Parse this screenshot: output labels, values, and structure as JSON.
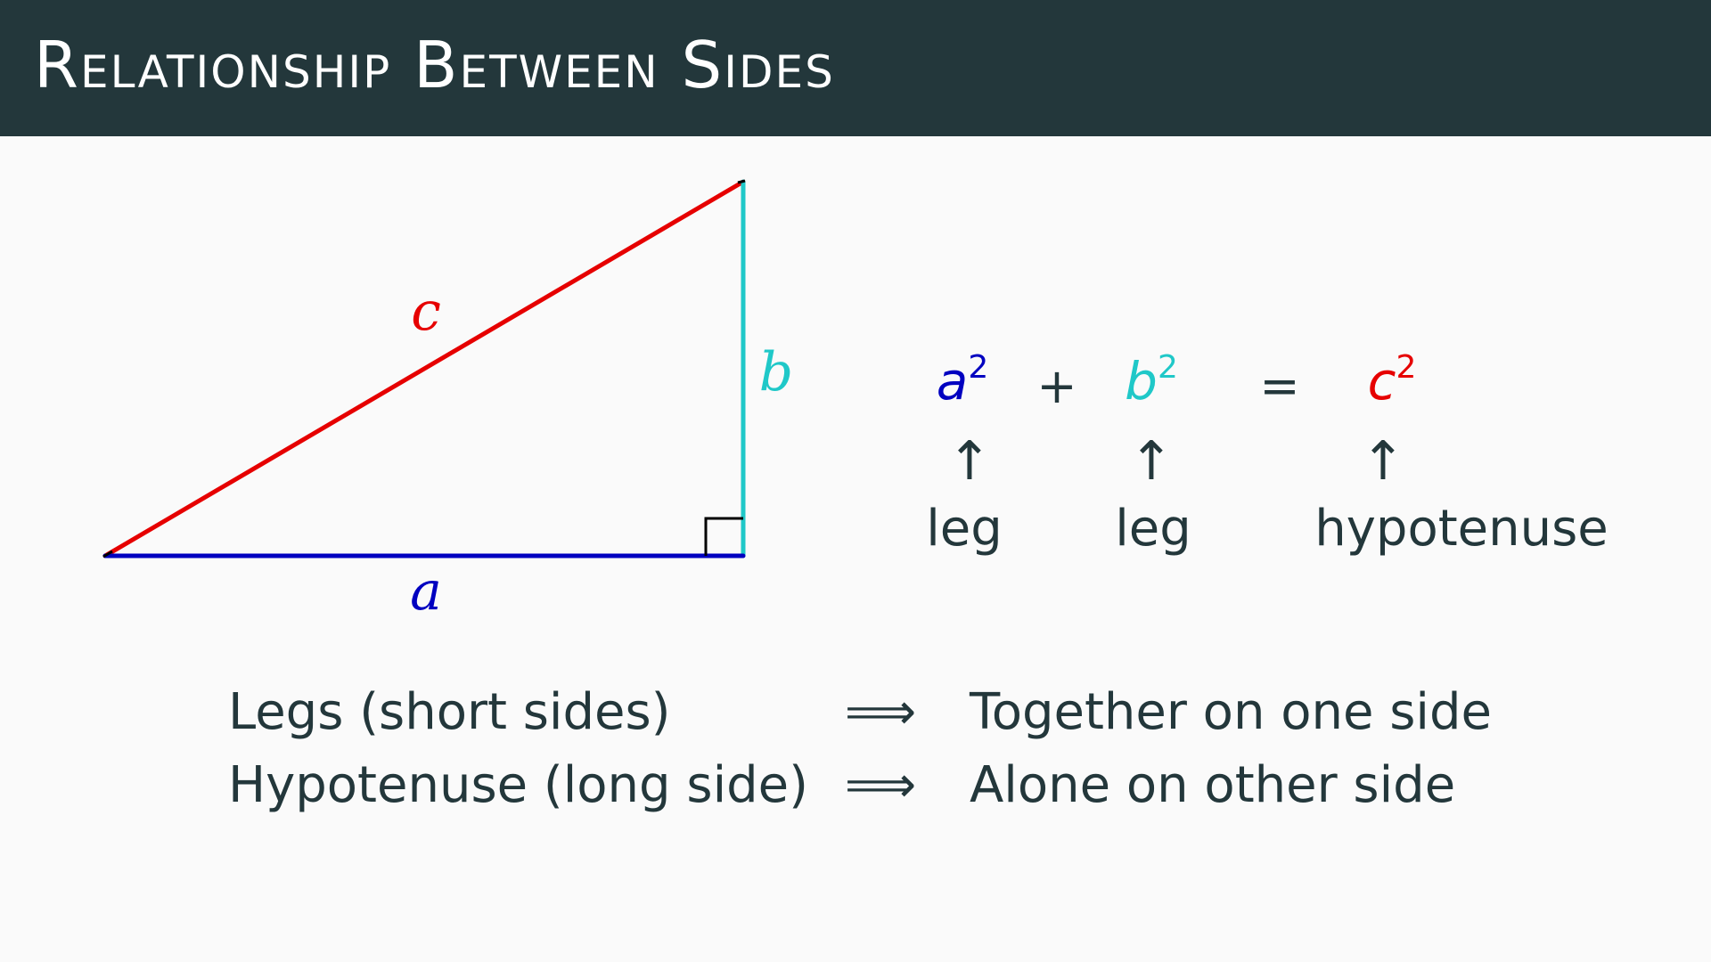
{
  "title": "Relationship Between Sides",
  "colors": {
    "title_bar": "#23373b",
    "background": "#fafafa",
    "text": "#23373b",
    "side_a": "#0000c0",
    "side_b": "#1fc8c8",
    "side_c": "#e60000"
  },
  "triangle": {
    "label_a": "a",
    "label_b": "b",
    "label_c": "c",
    "right_angle_marker": "right-angle-square"
  },
  "equation": {
    "term_a": {
      "base": "a",
      "exp": "2",
      "arrow": "↑",
      "caption": "leg"
    },
    "plus": "+",
    "term_b": {
      "base": "b",
      "exp": "2",
      "arrow": "↑",
      "caption": "leg"
    },
    "equals": "=",
    "term_c": {
      "base": "c",
      "exp": "2",
      "arrow": "↑",
      "caption": "hypotenuse"
    }
  },
  "rules": [
    {
      "left": "Legs (short sides)",
      "implies": "⟹",
      "right": "Together on one side"
    },
    {
      "left": "Hypotenuse (long side)",
      "implies": "⟹",
      "right": "Alone on other side"
    }
  ]
}
